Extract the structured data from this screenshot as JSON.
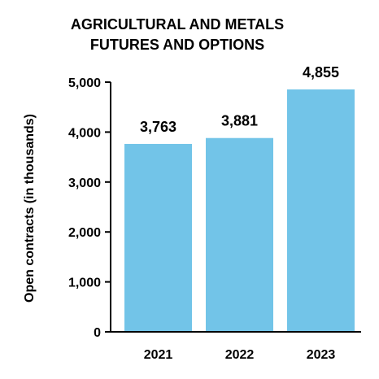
{
  "chart_data": {
    "type": "bar",
    "title_lines": [
      "AGRICULTURAL AND METALS",
      "FUTURES AND OPTIONS"
    ],
    "ylabel": "Open contracts (in thousands)",
    "xlabel": "",
    "categories": [
      "2021",
      "2022",
      "2023"
    ],
    "values": [
      3763,
      3881,
      4855
    ],
    "data_labels": [
      "3,763",
      "3,881",
      "4,855"
    ],
    "yticks": [
      0,
      1000,
      2000,
      3000,
      4000,
      5000
    ],
    "ytick_labels": [
      "0",
      "1,000",
      "2,000",
      "3,000",
      "4,000",
      "5,000"
    ],
    "ylim": [
      0,
      5000
    ],
    "grid": false,
    "legend": "none",
    "bar_color": "#72c4e8",
    "axis_color": "#000000"
  }
}
